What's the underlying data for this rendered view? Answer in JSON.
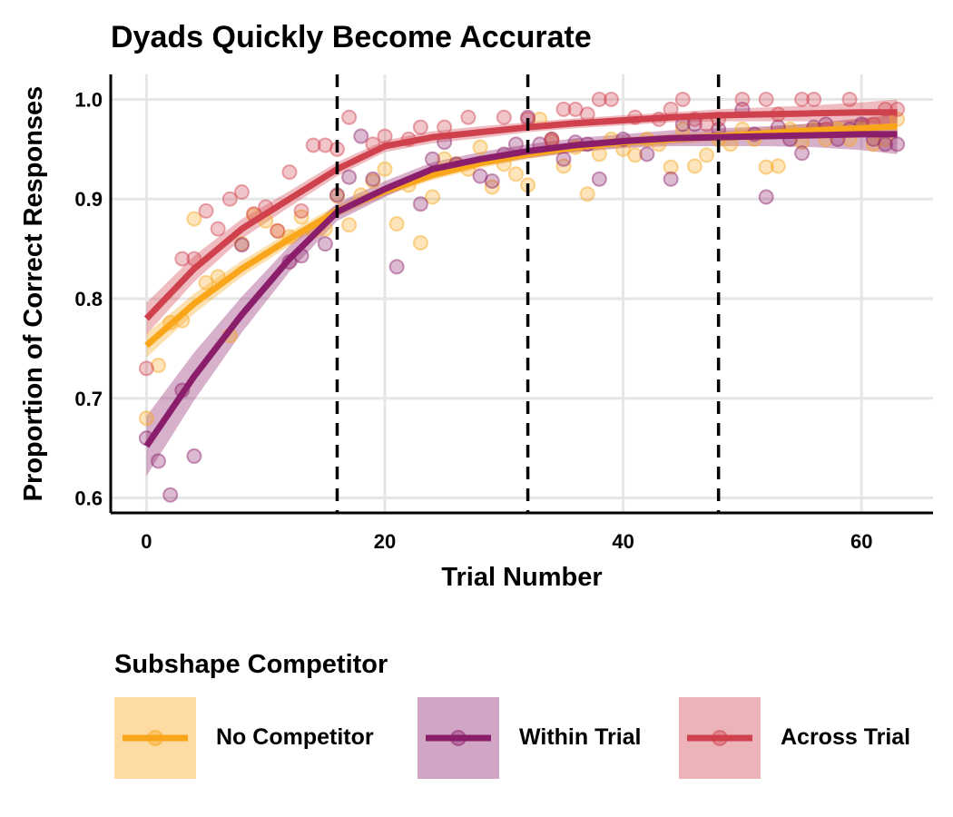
{
  "chart_data": {
    "type": "scatter",
    "title": "Dyads Quickly Become Accurate",
    "xlabel": "Trial Number",
    "ylabel": "Proportion of Correct Responses",
    "xlim": [
      -3,
      66
    ],
    "ylim": [
      0.585,
      1.025
    ],
    "x_ticks": [
      "0",
      "20",
      "40",
      "60"
    ],
    "x_tick_values": [
      0,
      20,
      40,
      60
    ],
    "y_ticks": [
      "0.6",
      "0.7",
      "0.8",
      "0.9",
      "1.0"
    ],
    "y_tick_values": [
      0.6,
      0.7,
      0.8,
      0.9,
      1.0
    ],
    "vlines": [
      16,
      32,
      48
    ],
    "grid": true,
    "legend_title": "Subshape Competitor",
    "legend_position": "bottom",
    "series": [
      {
        "name": "No Competitor",
        "color": "#F9A61A",
        "points": [
          [
            0,
            0.68
          ],
          [
            1,
            0.733
          ],
          [
            2,
            0.776
          ],
          [
            3,
            0.778
          ],
          [
            4,
            0.88
          ],
          [
            5,
            0.816
          ],
          [
            6,
            0.822
          ],
          [
            7,
            0.763
          ],
          [
            8,
            0.855
          ],
          [
            9,
            0.884
          ],
          [
            10,
            0.878
          ],
          [
            11,
            0.868
          ],
          [
            12,
            0.862
          ],
          [
            13,
            0.882
          ],
          [
            14,
            0.868
          ],
          [
            15,
            0.87
          ],
          [
            16,
            0.903
          ],
          [
            17,
            0.874
          ],
          [
            18,
            0.904
          ],
          [
            19,
            0.918
          ],
          [
            20,
            0.93
          ],
          [
            21,
            0.875
          ],
          [
            22,
            0.914
          ],
          [
            23,
            0.856
          ],
          [
            24,
            0.902
          ],
          [
            25,
            0.94
          ],
          [
            26,
            0.935
          ],
          [
            27,
            0.93
          ],
          [
            28,
            0.952
          ],
          [
            29,
            0.912
          ],
          [
            30,
            0.935
          ],
          [
            31,
            0.925
          ],
          [
            32,
            0.914
          ],
          [
            33,
            0.98
          ],
          [
            34,
            0.96
          ],
          [
            35,
            0.933
          ],
          [
            36,
            0.952
          ],
          [
            37,
            0.905
          ],
          [
            38,
            0.945
          ],
          [
            39,
            0.96
          ],
          [
            40,
            0.95
          ],
          [
            41,
            0.944
          ],
          [
            42,
            0.96
          ],
          [
            43,
            0.955
          ],
          [
            44,
            0.932
          ],
          [
            45,
            0.97
          ],
          [
            46,
            0.933
          ],
          [
            47,
            0.944
          ],
          [
            48,
            0.96
          ],
          [
            49,
            0.955
          ],
          [
            50,
            0.97
          ],
          [
            51,
            0.96
          ],
          [
            52,
            0.932
          ],
          [
            53,
            0.933
          ],
          [
            54,
            0.97
          ],
          [
            55,
            0.957
          ],
          [
            56,
            0.97
          ],
          [
            57,
            0.96
          ],
          [
            58,
            0.97
          ],
          [
            59,
            0.96
          ],
          [
            60,
            0.97
          ],
          [
            61,
            0.955
          ],
          [
            62,
            0.96
          ],
          [
            63,
            0.98
          ]
        ],
        "fit": [
          [
            0,
            0.753
          ],
          [
            4,
            0.795
          ],
          [
            8,
            0.83
          ],
          [
            12,
            0.86
          ],
          [
            16,
            0.888
          ],
          [
            20,
            0.908
          ],
          [
            24,
            0.924
          ],
          [
            28,
            0.936
          ],
          [
            32,
            0.945
          ],
          [
            36,
            0.952
          ],
          [
            40,
            0.957
          ],
          [
            44,
            0.96
          ],
          [
            48,
            0.963
          ],
          [
            52,
            0.966
          ],
          [
            56,
            0.969
          ],
          [
            60,
            0.971
          ],
          [
            63,
            0.973
          ]
        ],
        "band": [
          0.012,
          0.01,
          0.008,
          0.007,
          0.006,
          0.005,
          0.005,
          0.005,
          0.005,
          0.005,
          0.005,
          0.005,
          0.005,
          0.006,
          0.007,
          0.009,
          0.012
        ]
      },
      {
        "name": "Within Trial",
        "color": "#8B1E6B",
        "points": [
          [
            0,
            0.66
          ],
          [
            1,
            0.637
          ],
          [
            2,
            0.603
          ],
          [
            3,
            0.708
          ],
          [
            4,
            0.642
          ],
          [
            8,
            0.854
          ],
          [
            12,
            0.837
          ],
          [
            13,
            0.843
          ],
          [
            15,
            0.855
          ],
          [
            16,
            0.904
          ],
          [
            17,
            0.922
          ],
          [
            18,
            0.963
          ],
          [
            19,
            0.92
          ],
          [
            21,
            0.832
          ],
          [
            23,
            0.895
          ],
          [
            24,
            0.94
          ],
          [
            25,
            0.957
          ],
          [
            26,
            0.935
          ],
          [
            28,
            0.923
          ],
          [
            29,
            0.918
          ],
          [
            30,
            0.945
          ],
          [
            31,
            0.955
          ],
          [
            32,
            0.982
          ],
          [
            33,
            0.955
          ],
          [
            34,
            0.96
          ],
          [
            35,
            0.94
          ],
          [
            36,
            0.957
          ],
          [
            37,
            0.955
          ],
          [
            38,
            0.92
          ],
          [
            40,
            0.96
          ],
          [
            42,
            0.945
          ],
          [
            44,
            0.92
          ],
          [
            45,
            0.975
          ],
          [
            46,
            0.975
          ],
          [
            48,
            0.97
          ],
          [
            50,
            0.99
          ],
          [
            51,
            0.965
          ],
          [
            52,
            0.902
          ],
          [
            53,
            0.972
          ],
          [
            54,
            0.96
          ],
          [
            55,
            0.946
          ],
          [
            56,
            0.972
          ],
          [
            57,
            0.975
          ],
          [
            58,
            0.96
          ],
          [
            59,
            0.97
          ],
          [
            60,
            0.975
          ],
          [
            61,
            0.96
          ],
          [
            62,
            0.955
          ],
          [
            63,
            0.955
          ]
        ],
        "fit": [
          [
            0,
            0.652
          ],
          [
            4,
            0.722
          ],
          [
            8,
            0.784
          ],
          [
            12,
            0.84
          ],
          [
            16,
            0.887
          ],
          [
            20,
            0.91
          ],
          [
            24,
            0.93
          ],
          [
            28,
            0.94
          ],
          [
            32,
            0.948
          ],
          [
            36,
            0.954
          ],
          [
            40,
            0.958
          ],
          [
            44,
            0.961
          ],
          [
            48,
            0.962
          ],
          [
            52,
            0.963
          ],
          [
            56,
            0.964
          ],
          [
            60,
            0.965
          ],
          [
            63,
            0.965
          ]
        ],
        "band": [
          0.03,
          0.024,
          0.018,
          0.013,
          0.009,
          0.008,
          0.007,
          0.007,
          0.007,
          0.007,
          0.007,
          0.008,
          0.009,
          0.01,
          0.012,
          0.016,
          0.02
        ]
      },
      {
        "name": "Across Trial",
        "color": "#D0414E",
        "points": [
          [
            0,
            0.73
          ],
          [
            3,
            0.84
          ],
          [
            4,
            0.84
          ],
          [
            5,
            0.888
          ],
          [
            6,
            0.87
          ],
          [
            7,
            0.9
          ],
          [
            8,
            0.907
          ],
          [
            9,
            0.885
          ],
          [
            10,
            0.892
          ],
          [
            11,
            0.868
          ],
          [
            12,
            0.927
          ],
          [
            13,
            0.888
          ],
          [
            14,
            0.954
          ],
          [
            15,
            0.954
          ],
          [
            16,
            0.95
          ],
          [
            17,
            0.982
          ],
          [
            19,
            0.955
          ],
          [
            20,
            0.963
          ],
          [
            22,
            0.96
          ],
          [
            23,
            0.972
          ],
          [
            25,
            0.972
          ],
          [
            27,
            0.982
          ],
          [
            30,
            0.982
          ],
          [
            32,
            0.98
          ],
          [
            34,
            0.958
          ],
          [
            35,
            0.99
          ],
          [
            36,
            0.99
          ],
          [
            37,
            0.985
          ],
          [
            38,
            1.0
          ],
          [
            39,
            1.0
          ],
          [
            41,
            0.982
          ],
          [
            43,
            0.98
          ],
          [
            44,
            0.99
          ],
          [
            45,
            1.0
          ],
          [
            46,
            0.98
          ],
          [
            47,
            0.975
          ],
          [
            48,
            0.98
          ],
          [
            50,
            1.0
          ],
          [
            52,
            1.0
          ],
          [
            53,
            0.985
          ],
          [
            55,
            1.0
          ],
          [
            56,
            1.0
          ],
          [
            57,
            0.97
          ],
          [
            59,
            1.0
          ],
          [
            61,
            0.975
          ],
          [
            62,
            0.99
          ],
          [
            63,
            0.99
          ]
        ],
        "fit": [
          [
            0,
            0.78
          ],
          [
            4,
            0.83
          ],
          [
            8,
            0.87
          ],
          [
            12,
            0.9
          ],
          [
            16,
            0.93
          ],
          [
            20,
            0.953
          ],
          [
            24,
            0.962
          ],
          [
            28,
            0.967
          ],
          [
            32,
            0.972
          ],
          [
            36,
            0.976
          ],
          [
            40,
            0.979
          ],
          [
            44,
            0.982
          ],
          [
            48,
            0.984
          ],
          [
            52,
            0.985
          ],
          [
            56,
            0.986
          ],
          [
            60,
            0.987
          ],
          [
            63,
            0.987
          ]
        ],
        "band": [
          0.016,
          0.013,
          0.01,
          0.008,
          0.007,
          0.006,
          0.006,
          0.006,
          0.005,
          0.005,
          0.005,
          0.005,
          0.006,
          0.007,
          0.008,
          0.01,
          0.013
        ]
      }
    ]
  }
}
